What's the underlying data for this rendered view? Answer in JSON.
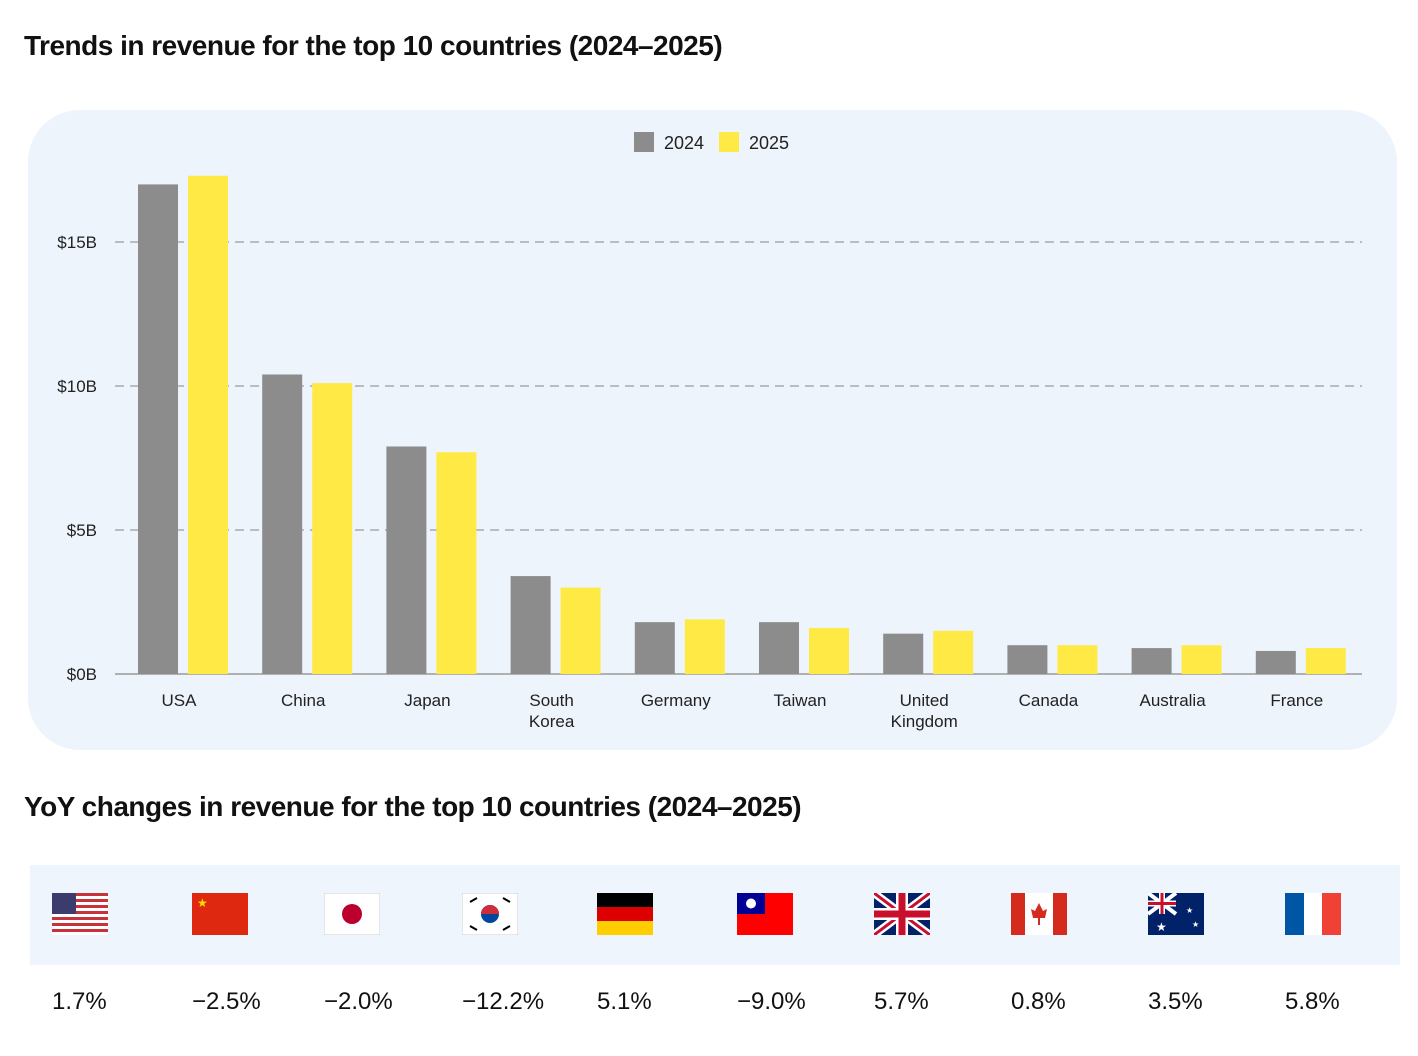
{
  "chart_data": {
    "type": "bar",
    "title": "Trends in revenue for the top 10 countries (2024–2025)",
    "categories": [
      "USA",
      "China",
      "Japan",
      "South Korea",
      "Germany",
      "Taiwan",
      "United Kingdom",
      "Canada",
      "Australia",
      "France"
    ],
    "series": [
      {
        "name": "2024",
        "color": "#8c8c8c",
        "values": [
          17.0,
          10.4,
          7.9,
          3.4,
          1.8,
          1.8,
          1.4,
          1.0,
          0.9,
          0.8
        ]
      },
      {
        "name": "2025",
        "color": "#ffe945",
        "values": [
          17.3,
          10.1,
          7.7,
          3.0,
          1.9,
          1.6,
          1.5,
          1.0,
          1.0,
          0.9
        ]
      }
    ],
    "yticks": [
      0,
      5,
      10,
      15
    ],
    "ytick_labels": [
      "$0B",
      "$5B",
      "$10B",
      "$15B"
    ],
    "ylim": [
      0,
      18
    ],
    "grid": true,
    "legend": "top-center",
    "xlabel": "",
    "ylabel": ""
  },
  "yoy": {
    "title": "YoY changes in revenue for the top 10 countries (2024–2025)",
    "items": [
      {
        "flag": "us-flag-icon",
        "value": "1.7%"
      },
      {
        "flag": "cn-flag-icon",
        "value": "−2.5%"
      },
      {
        "flag": "jp-flag-icon",
        "value": "−2.0%"
      },
      {
        "flag": "kr-flag-icon",
        "value": "−12.2%"
      },
      {
        "flag": "de-flag-icon",
        "value": "5.1%"
      },
      {
        "flag": "tw-flag-icon",
        "value": "−9.0%"
      },
      {
        "flag": "gb-flag-icon",
        "value": "5.7%"
      },
      {
        "flag": "ca-flag-icon",
        "value": "0.8%"
      },
      {
        "flag": "au-flag-icon",
        "value": "3.5%"
      },
      {
        "flag": "fr-flag-icon",
        "value": "5.8%"
      }
    ]
  }
}
